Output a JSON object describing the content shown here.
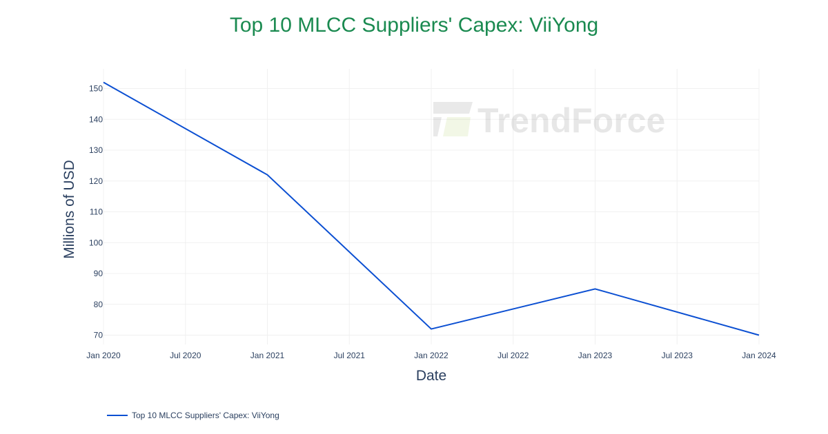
{
  "title": "Top 10 MLCC Suppliers' Capex: ViiYong",
  "watermark": "TrendForce",
  "legend": {
    "label": "Top 10 MLCC Suppliers' Capex: ViiYong"
  },
  "colors": {
    "title": "#1a8a50",
    "line": "#0b4fd2",
    "text": "#2a3f5f",
    "grid": "#f0f0f0"
  },
  "chart_data": {
    "type": "line",
    "title": "Top 10 MLCC Suppliers' Capex: ViiYong",
    "xlabel": "Date",
    "ylabel": "Millions of USD",
    "x": [
      "Jan 2020",
      "Jan 2021",
      "Jan 2022",
      "Jan 2023",
      "Jan 2024"
    ],
    "series": [
      {
        "name": "Top 10 MLCC Suppliers' Capex: ViiYong",
        "values": [
          152,
          122,
          72,
          85,
          70
        ]
      }
    ],
    "x_tick_labels": [
      "Jan 2020",
      "Jul 2020",
      "Jan 2021",
      "Jul 2021",
      "Jan 2022",
      "Jul 2022",
      "Jan 2023",
      "Jul 2023",
      "Jan 2024"
    ],
    "y_tick_labels": [
      "70",
      "80",
      "90",
      "100",
      "110",
      "120",
      "130",
      "140",
      "150"
    ],
    "ylim": [
      68,
      154
    ],
    "grid": true,
    "legend_position": "bottom-left"
  }
}
